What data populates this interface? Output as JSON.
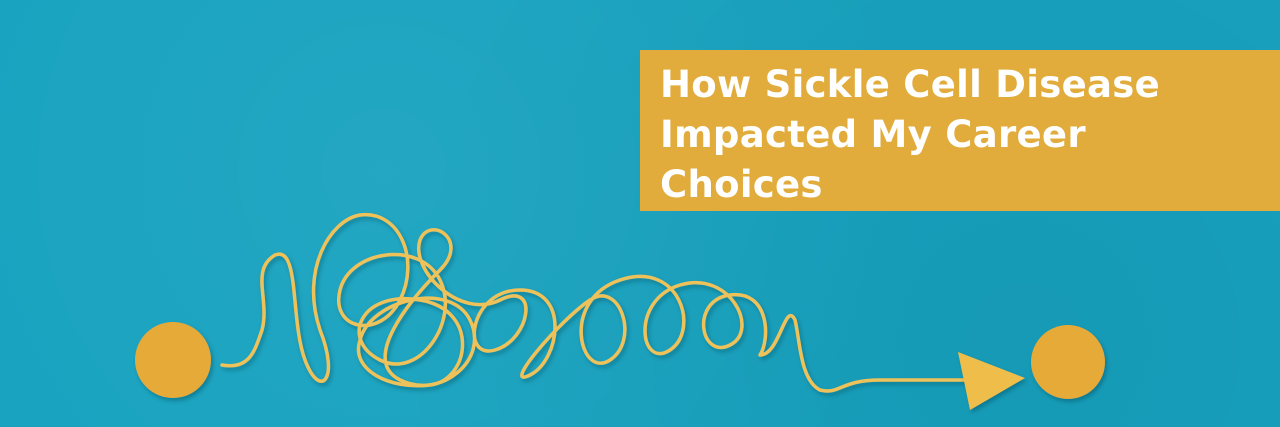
{
  "banner": {
    "title_lines": [
      "How Sickle Cell Disease",
      "Impacted My Career",
      "Choices"
    ]
  },
  "colors": {
    "background": "#17a2bf",
    "accent": "#e1ac3b",
    "title_text": "#ffffff"
  },
  "icons": [
    "start-dot-icon",
    "tangled-path-icon",
    "arrow-head-icon",
    "end-dot-icon"
  ]
}
